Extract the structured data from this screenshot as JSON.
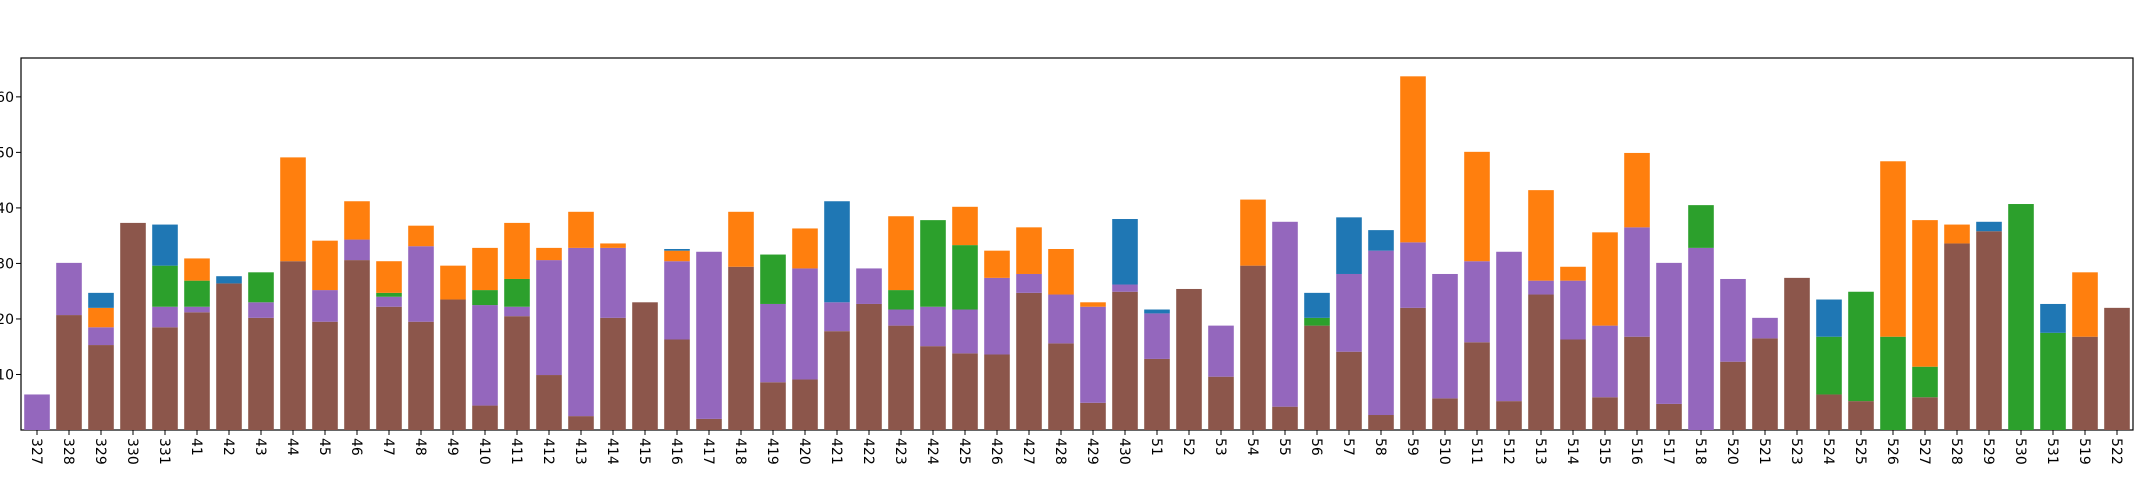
{
  "chart_data": {
    "type": "stacked_bar",
    "categories": [
      "327",
      "328",
      "329",
      "330",
      "331",
      "41",
      "42",
      "43",
      "44",
      "45",
      "46",
      "47",
      "48",
      "49",
      "410",
      "411",
      "412",
      "413",
      "414",
      "415",
      "416",
      "417",
      "418",
      "419",
      "420",
      "421",
      "422",
      "423",
      "424",
      "425",
      "426",
      "427",
      "428",
      "429",
      "430",
      "51",
      "52",
      "53",
      "54",
      "55",
      "56",
      "57",
      "58",
      "59",
      "510",
      "511",
      "512",
      "513",
      "514",
      "515",
      "516",
      "517",
      "518",
      "520",
      "521",
      "523",
      "524",
      "525",
      "526",
      "527",
      "528",
      "529",
      "530",
      "531",
      "519",
      "522"
    ],
    "series": [
      {
        "color": "#8c564b",
        "values": [
          0,
          20.7,
          15.3,
          37.3,
          18.5,
          21.2,
          26.4,
          20.2,
          30.4,
          19.5,
          30.6,
          22.2,
          19.5,
          23.5,
          4.4,
          20.5,
          9.9,
          2.5,
          20.2,
          23,
          16.3,
          2,
          29.4,
          8.6,
          9.1,
          17.8,
          22.7,
          18.8,
          15.1,
          13.8,
          13.6,
          24.7,
          15.6,
          4.9,
          24.9,
          12.8,
          25.4,
          9.6,
          29.6,
          4.2,
          18.8,
          14.1,
          2.7,
          22,
          5.7,
          15.8,
          5.2,
          24.4,
          16.3,
          5.9,
          16.8,
          4.7,
          0,
          12.3,
          16.5,
          27.4,
          6.4,
          5.2,
          0,
          5.9,
          33.6,
          35.8,
          0,
          0,
          16.8,
          22
        ]
      },
      {
        "color": "#9467bd",
        "values": [
          6.4,
          9.4,
          3.2,
          0,
          3.7,
          1,
          0,
          2.8,
          0,
          5.7,
          3.7,
          1.8,
          13.6,
          0,
          18.1,
          1.7,
          20.7,
          30.3,
          12.6,
          0,
          14.1,
          30.1,
          0,
          14.1,
          20,
          5.2,
          6.4,
          2.9,
          7.1,
          7.9,
          13.8,
          3.4,
          8.8,
          17.3,
          1.3,
          8.2,
          0,
          9.2,
          0,
          33.3,
          0,
          14,
          29.6,
          11.8,
          22.4,
          14.6,
          26.9,
          2.5,
          10.6,
          12.9,
          19.7,
          25.4,
          32.8,
          14.9,
          3.7,
          0,
          0,
          0,
          0,
          0,
          0,
          0,
          0,
          0,
          0,
          0
        ]
      },
      {
        "color": "#2ca02c",
        "values": [
          0,
          0,
          0,
          0,
          7.4,
          4.7,
          0,
          5.4,
          0,
          0,
          0,
          0.7,
          0,
          0,
          2.7,
          5,
          0,
          0,
          0,
          0,
          0,
          0,
          0,
          8.9,
          0,
          0,
          0,
          3.5,
          15.6,
          11.6,
          0,
          0,
          0,
          0,
          0,
          0,
          0,
          0,
          0,
          0,
          1.4,
          0,
          0,
          0,
          0,
          0,
          0,
          0,
          0,
          0,
          0,
          0,
          7.7,
          0,
          0,
          0,
          10.4,
          19.7,
          16.8,
          5.5,
          0,
          0,
          40.7,
          17.5,
          0,
          0
        ]
      },
      {
        "color": "#ff7f0e",
        "values": [
          0,
          0,
          3.5,
          0,
          0,
          4,
          0,
          0,
          18.7,
          8.9,
          6.9,
          5.7,
          3.7,
          6.1,
          7.6,
          10.1,
          2.2,
          6.5,
          0.8,
          0,
          1.9,
          0,
          9.9,
          0,
          7.2,
          0,
          0,
          13.3,
          0,
          6.9,
          4.9,
          8.4,
          8.2,
          0.8,
          0,
          0,
          0,
          0,
          11.9,
          0,
          0,
          0,
          0,
          29.9,
          0,
          19.7,
          0,
          16.3,
          2.5,
          16.8,
          13.4,
          0,
          0,
          0,
          0,
          0,
          0,
          0,
          31.6,
          26.4,
          3.4,
          0,
          0,
          0,
          11.6,
          0
        ]
      },
      {
        "color": "#1f77b4",
        "values": [
          0,
          0,
          2.7,
          0,
          7.4,
          0,
          1.3,
          0,
          0,
          0,
          0,
          0,
          0,
          0,
          0,
          0,
          0,
          0,
          0,
          0,
          0.3,
          0,
          0,
          0,
          0,
          18.2,
          0,
          0,
          0,
          0,
          0,
          0,
          0,
          0,
          11.8,
          0.7,
          0,
          0,
          0,
          0,
          4.5,
          10.2,
          3.7,
          0,
          0,
          0,
          0,
          0,
          0,
          0,
          0,
          0,
          0,
          0,
          0,
          0,
          6.7,
          0,
          0,
          0,
          0,
          1.7,
          0,
          5.2,
          0,
          0
        ]
      }
    ],
    "ylim": [
      0,
      67
    ],
    "yticks": [
      10,
      20,
      30,
      40,
      50,
      60
    ]
  }
}
